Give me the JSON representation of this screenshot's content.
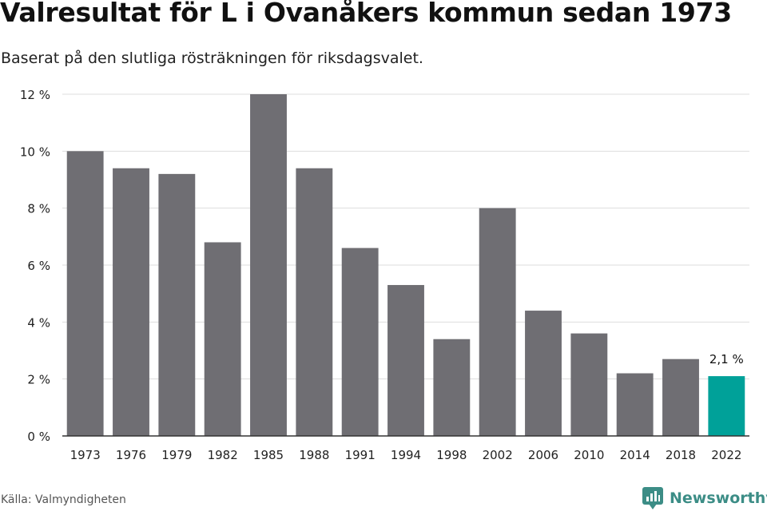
{
  "header": {
    "title": "Valresultat för L i Ovanåkers kommun sedan 1973",
    "subtitle": "Baserat på den slutliga rösträkningen för riksdagsvalet."
  },
  "footer": {
    "source": "Källa: Valmyndigheten",
    "brand_name": "Newsworthy",
    "brand_icon": "bar-chart-speech-icon"
  },
  "colors": {
    "bar": "#6f6e73",
    "highlight": "#00a199",
    "grid": "#dddddd",
    "axis": "#333333",
    "brand": "#3c8d86"
  },
  "chart_data": {
    "type": "bar",
    "title": "Valresultat för L i Ovanåkers kommun sedan 1973",
    "subtitle": "Baserat på den slutliga rösträkningen för riksdagsvalet.",
    "xlabel": "",
    "ylabel": "",
    "categories": [
      "1973",
      "1976",
      "1979",
      "1982",
      "1985",
      "1988",
      "1991",
      "1994",
      "1998",
      "2002",
      "2006",
      "2010",
      "2014",
      "2018",
      "2022"
    ],
    "values": [
      10.0,
      9.4,
      9.2,
      6.8,
      12.0,
      9.4,
      6.6,
      5.3,
      3.4,
      8.0,
      4.4,
      3.6,
      2.2,
      2.7,
      2.1
    ],
    "ylim": [
      0,
      12
    ],
    "yticks": [
      0,
      2,
      4,
      6,
      8,
      10,
      12
    ],
    "ytick_labels": [
      "0 %",
      "2 %",
      "4 %",
      "6 %",
      "8 %",
      "10 %",
      "12 %"
    ],
    "grid": true,
    "highlight_category": "2022",
    "annotations": [
      {
        "category": "2022",
        "text": "2,1 %"
      }
    ]
  }
}
